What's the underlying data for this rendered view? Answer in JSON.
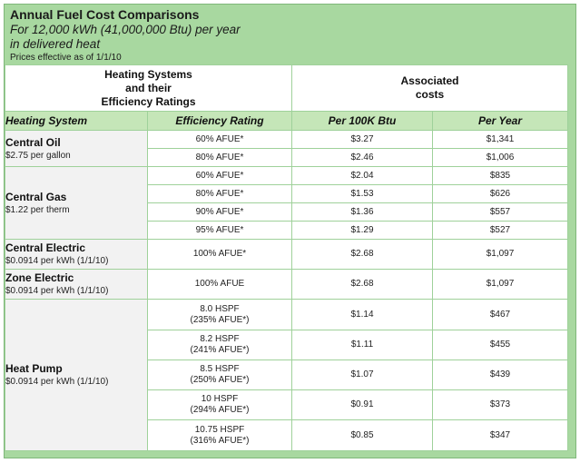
{
  "header": {
    "title": "Annual Fuel Cost Comparisons",
    "subtitle_line1": "For 12,000 kWh (41,000,000 Btu) per year",
    "subtitle_line2": "in delivered heat",
    "note": "Prices effective as of 1/1/10"
  },
  "top_headers": {
    "left_line1": "Heating Systems",
    "left_line2": "and their",
    "left_line3": "Efficiency Ratings",
    "right_line1": "Associated",
    "right_line2": "costs"
  },
  "columns": {
    "system": "Heating System",
    "efficiency": "Efficiency Rating",
    "per_100k": "Per 100K Btu",
    "per_year": "Per Year"
  },
  "systems": [
    {
      "name": "Central Oil",
      "price": "$2.75 per gallon",
      "rows": [
        {
          "eff": "60% AFUE*",
          "per100k": "$3.27",
          "peryear": "$1,341"
        },
        {
          "eff": "80% AFUE*",
          "per100k": "$2.46",
          "peryear": "$1,006"
        }
      ]
    },
    {
      "name": "Central Gas",
      "price": "$1.22 per therm",
      "rows": [
        {
          "eff": "60% AFUE*",
          "per100k": "$2.04",
          "peryear": "$835"
        },
        {
          "eff": "80% AFUE*",
          "per100k": "$1.53",
          "peryear": "$626"
        },
        {
          "eff": "90% AFUE*",
          "per100k": "$1.36",
          "peryear": "$557"
        },
        {
          "eff": "95% AFUE*",
          "per100k": "$1.29",
          "peryear": "$527"
        }
      ]
    },
    {
      "name": "Central Electric",
      "price": "$0.0914 per kWh (1/1/10)",
      "rows": [
        {
          "eff": "100% AFUE*",
          "per100k": "$2.68",
          "peryear": "$1,097"
        }
      ]
    },
    {
      "name": "Zone Electric",
      "price": "$0.0914 per kWh (1/1/10)",
      "rows": [
        {
          "eff": "100% AFUE",
          "per100k": "$2.68",
          "peryear": "$1,097"
        }
      ]
    },
    {
      "name": "Heat Pump",
      "price": "$0.0914 per kWh (1/1/10)",
      "rows": [
        {
          "eff_line1": "8.0 HSPF",
          "eff_line2": "(235% AFUE*)",
          "per100k": "$1.14",
          "peryear": "$467"
        },
        {
          "eff_line1": "8.2 HSPF",
          "eff_line2": "(241% AFUE*)",
          "per100k": "$1.11",
          "peryear": "$455"
        },
        {
          "eff_line1": "8.5 HSPF",
          "eff_line2": "(250% AFUE*)",
          "per100k": "$1.07",
          "peryear": "$439"
        },
        {
          "eff_line1": "10 HSPF",
          "eff_line2": "(294% AFUE*)",
          "per100k": "$0.91",
          "peryear": "$373"
        },
        {
          "eff_line1": "10.75 HSPF",
          "eff_line2": "(316% AFUE*)",
          "per100k": "$0.85",
          "peryear": "$347"
        }
      ]
    }
  ],
  "colors": {
    "frame_green": "#a8d8a0",
    "column_header_green": "#c5e6b8",
    "grid_line": "#9fd19a",
    "system_cell_gray": "#f2f2f2"
  }
}
